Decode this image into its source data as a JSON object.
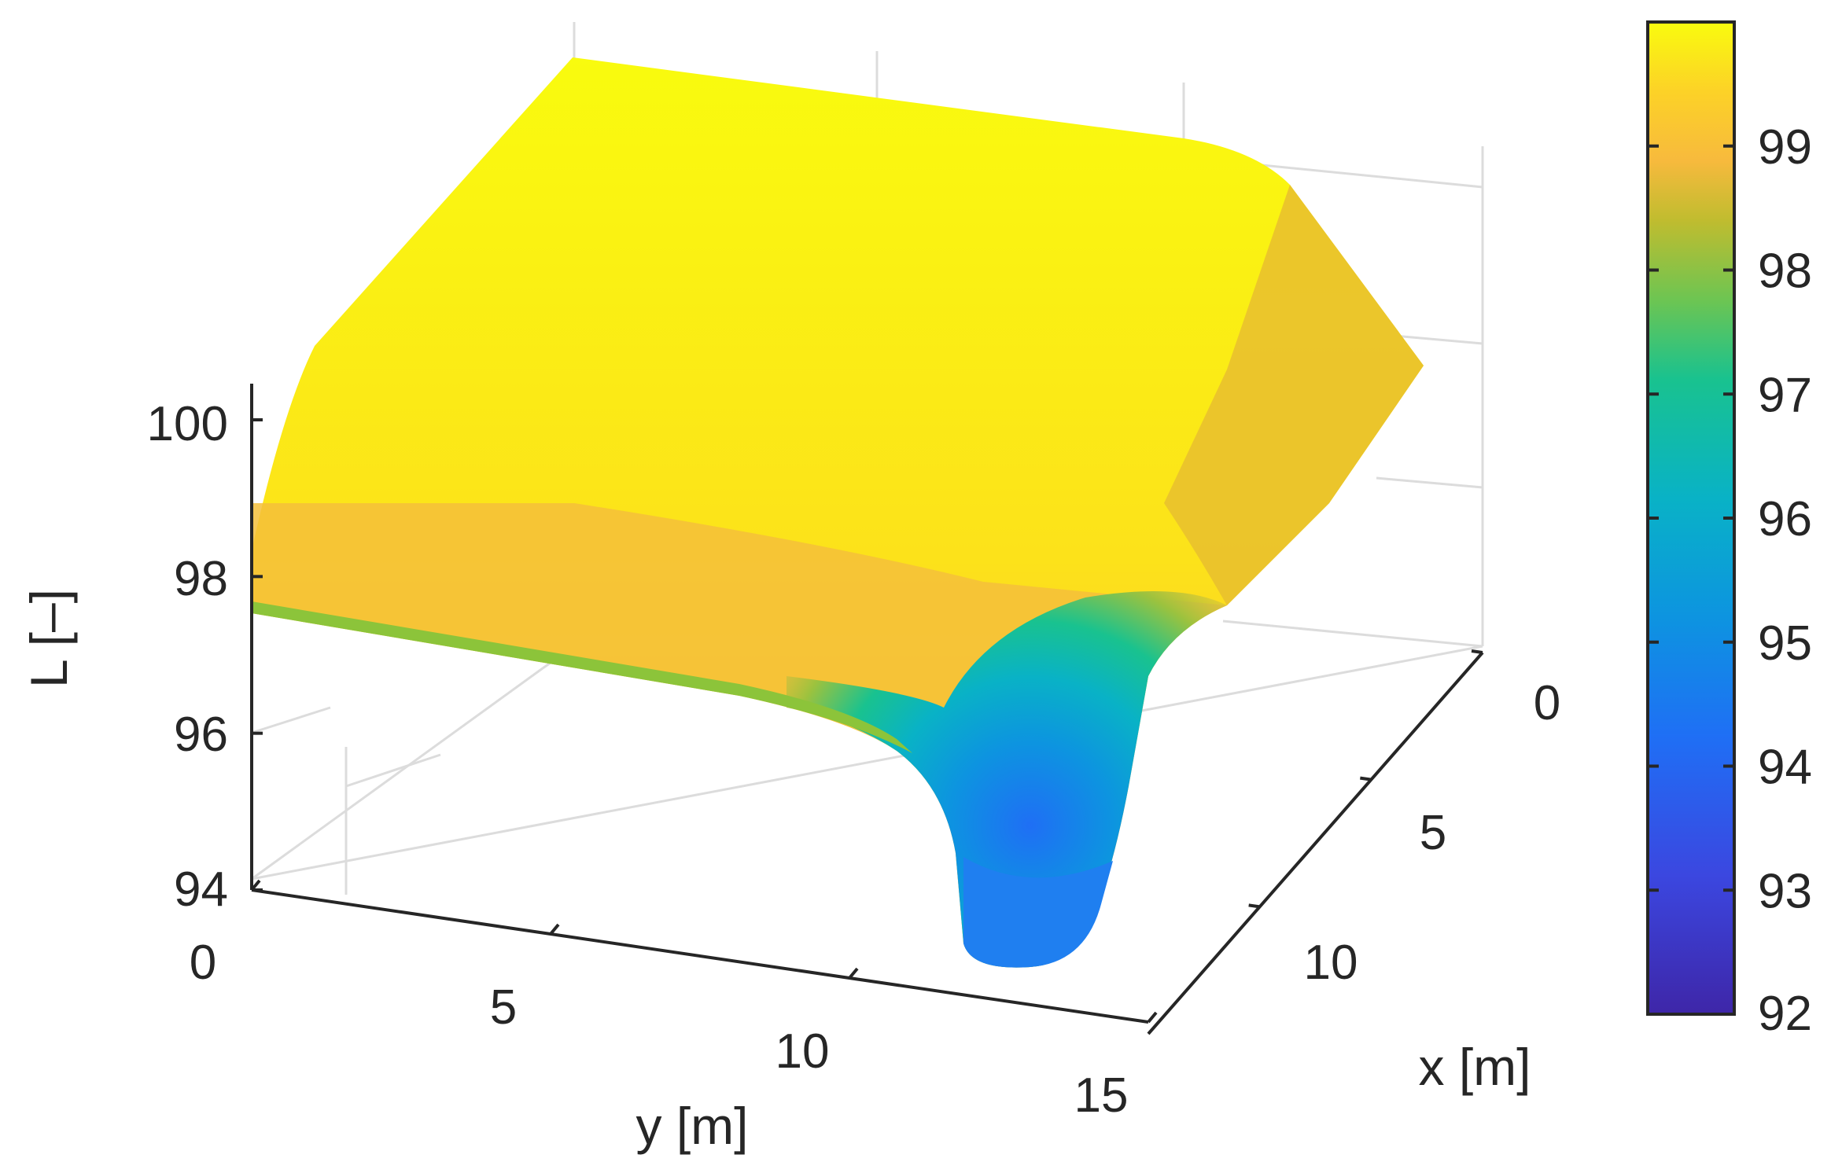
{
  "chart_data": {
    "type": "surface",
    "xlabel": "x [m]",
    "ylabel": "y [m]",
    "zlabel": "L [–]",
    "xlim": [
      0,
      15
    ],
    "ylim": [
      0,
      15
    ],
    "zlim": [
      94,
      100
    ],
    "x_ticks": [
      "0",
      "5",
      "10"
    ],
    "y_ticks": [
      "0",
      "5",
      "10",
      "15"
    ],
    "z_ticks": [
      "94",
      "96",
      "98",
      "100"
    ],
    "colorbar": {
      "ticks": [
        "92",
        "93",
        "94",
        "95",
        "96",
        "97",
        "98",
        "99"
      ],
      "range": [
        92,
        100
      ],
      "colormap": "parula"
    },
    "surface_notes": {
      "x": [
        0,
        2.5,
        5,
        7.5,
        10,
        12.5,
        15
      ],
      "y": [
        0,
        2.5,
        5,
        7.5,
        10,
        12.5,
        15
      ],
      "L_near_edge_y0": 97.6,
      "L_plateau": 99.6,
      "min_value": 94.3,
      "min_location": {
        "x": 12.5,
        "y": 12.5
      }
    },
    "grid": true
  }
}
